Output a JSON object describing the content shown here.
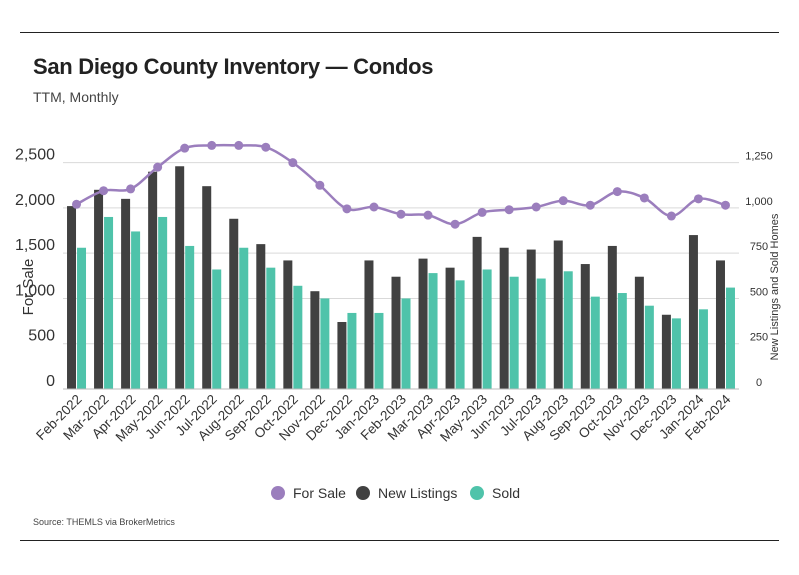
{
  "header": {
    "title": "San Diego County Inventory — Condos",
    "subtitle": "TTM, Monthly"
  },
  "footer": {
    "source": "Source:  THEMLS via BrokerMetrics"
  },
  "colors": {
    "for_sale": "#9b7ebd",
    "new_listings": "#414141",
    "sold": "#4fc3aa"
  },
  "chart_data": {
    "type": "bar",
    "title": "San Diego County Inventory — Condos",
    "subtitle": "TTM, Monthly",
    "categories": [
      "Feb-2022",
      "Mar-2022",
      "Apr-2022",
      "May-2022",
      "Jun-2022",
      "Jul-2022",
      "Aug-2022",
      "Sep-2022",
      "Oct-2022",
      "Nov-2022",
      "Dec-2022",
      "Jan-2023",
      "Feb-2023",
      "Mar-2023",
      "Apr-2023",
      "May-2023",
      "Jun-2023",
      "Jul-2023",
      "Aug-2023",
      "Sep-2023",
      "Oct-2023",
      "Nov-2023",
      "Dec-2023",
      "Jan-2024",
      "Feb-2024"
    ],
    "series": [
      {
        "name": "For Sale",
        "type": "line",
        "axis": "left",
        "values": [
          2040,
          2190,
          2210,
          2450,
          2660,
          2690,
          2690,
          2670,
          2500,
          2250,
          1990,
          2010,
          1930,
          1920,
          1820,
          1950,
          1980,
          2010,
          2080,
          2030,
          2180,
          2110,
          1910,
          2100,
          2030
        ]
      },
      {
        "name": "New Listings",
        "type": "bar",
        "axis": "right",
        "values": [
          1010,
          1100,
          1050,
          1200,
          1230,
          1120,
          940,
          800,
          710,
          540,
          370,
          710,
          620,
          720,
          670,
          840,
          780,
          770,
          820,
          690,
          790,
          620,
          410,
          850,
          710
        ]
      },
      {
        "name": "Sold",
        "type": "bar",
        "axis": "right",
        "values": [
          780,
          950,
          870,
          950,
          790,
          660,
          780,
          670,
          570,
          500,
          420,
          420,
          500,
          640,
          600,
          660,
          620,
          610,
          650,
          510,
          530,
          460,
          390,
          440,
          560
        ]
      }
    ],
    "ylabel": "For Sale",
    "y2label": "New Listings and Sold Homes",
    "ylim": [
      0,
      2750
    ],
    "yticks": [
      0,
      500,
      1000,
      1500,
      2000,
      2500
    ],
    "ytick_labels": [
      "0",
      "500",
      "1,000",
      "1,500",
      "2,000",
      "2,500"
    ],
    "y2lim": [
      0,
      1375
    ],
    "y2ticks": [
      0,
      250,
      500,
      750,
      1000,
      1250
    ],
    "y2tick_labels": [
      "0",
      "250",
      "500",
      "750",
      "1,000",
      "1,250"
    ],
    "grid": true,
    "legend_position": "bottom"
  }
}
